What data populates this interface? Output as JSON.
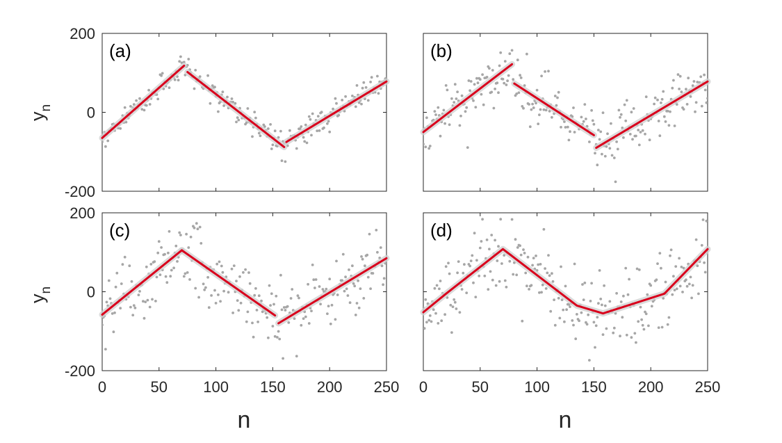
{
  "colors": {
    "points": "#a6a6a6",
    "fit": "#d9001c",
    "band": "#cfcfcf",
    "axis": "#262626"
  },
  "labels": {
    "xlabel": "n",
    "ylabel_main": "y",
    "ylabel_sub": "n"
  },
  "chart_data": [
    {
      "type": "scatter",
      "panel": "(a)",
      "xlim": [
        0,
        250
      ],
      "ylim": [
        -200,
        200
      ],
      "xticks": [
        "0",
        "50",
        "100",
        "150",
        "200",
        "250"
      ],
      "yticks": [
        "-200",
        "0",
        "200"
      ],
      "show_x_ticklabels": false,
      "show_y_ticklabels": true,
      "noise": 15,
      "segments": [
        {
          "x": [
            0,
            72
          ],
          "y": [
            -65,
            118
          ]
        },
        {
          "x": [
            75,
            160
          ],
          "y": [
            102,
            -88
          ]
        },
        {
          "x": [
            162,
            250
          ],
          "y": [
            -75,
            78
          ]
        }
      ]
    },
    {
      "type": "scatter",
      "panel": "(b)",
      "xlim": [
        0,
        250
      ],
      "ylim": [
        -200,
        200
      ],
      "xticks": [
        "0",
        "50",
        "100",
        "150",
        "200",
        "250"
      ],
      "yticks": [
        "-200",
        "0",
        "200"
      ],
      "show_x_ticklabels": false,
      "show_y_ticklabels": false,
      "noise": 32,
      "segments": [
        {
          "x": [
            0,
            78
          ],
          "y": [
            -50,
            122
          ]
        },
        {
          "x": [
            80,
            150
          ],
          "y": [
            73,
            -58
          ]
        },
        {
          "x": [
            152,
            250
          ],
          "y": [
            -90,
            78
          ]
        }
      ]
    },
    {
      "type": "scatter",
      "panel": "(c)",
      "xlim": [
        0,
        250
      ],
      "ylim": [
        -200,
        200
      ],
      "xticks": [
        "0",
        "50",
        "100",
        "150",
        "200",
        "250"
      ],
      "yticks": [
        "-200",
        "0",
        "200"
      ],
      "show_x_ticklabels": true,
      "show_y_ticklabels": true,
      "noise": 48,
      "segments": [
        {
          "x": [
            0,
            70
          ],
          "y": [
            -58,
            105
          ]
        },
        {
          "x": [
            70,
            152
          ],
          "y": [
            105,
            -60
          ]
        },
        {
          "x": [
            155,
            250
          ],
          "y": [
            -80,
            85
          ]
        }
      ]
    },
    {
      "type": "scatter",
      "panel": "(d)",
      "xlim": [
        0,
        250
      ],
      "ylim": [
        -200,
        200
      ],
      "xticks": [
        "0",
        "50",
        "100",
        "150",
        "200",
        "250"
      ],
      "yticks": [
        "-200",
        "0",
        "200"
      ],
      "show_x_ticklabels": true,
      "show_y_ticklabels": false,
      "noise": 48,
      "segments": [
        {
          "x": [
            0,
            20,
            70,
            135,
            158,
            212,
            250
          ],
          "y": [
            -52,
            -5,
            108,
            -35,
            -55,
            -5,
            108
          ]
        }
      ]
    }
  ]
}
